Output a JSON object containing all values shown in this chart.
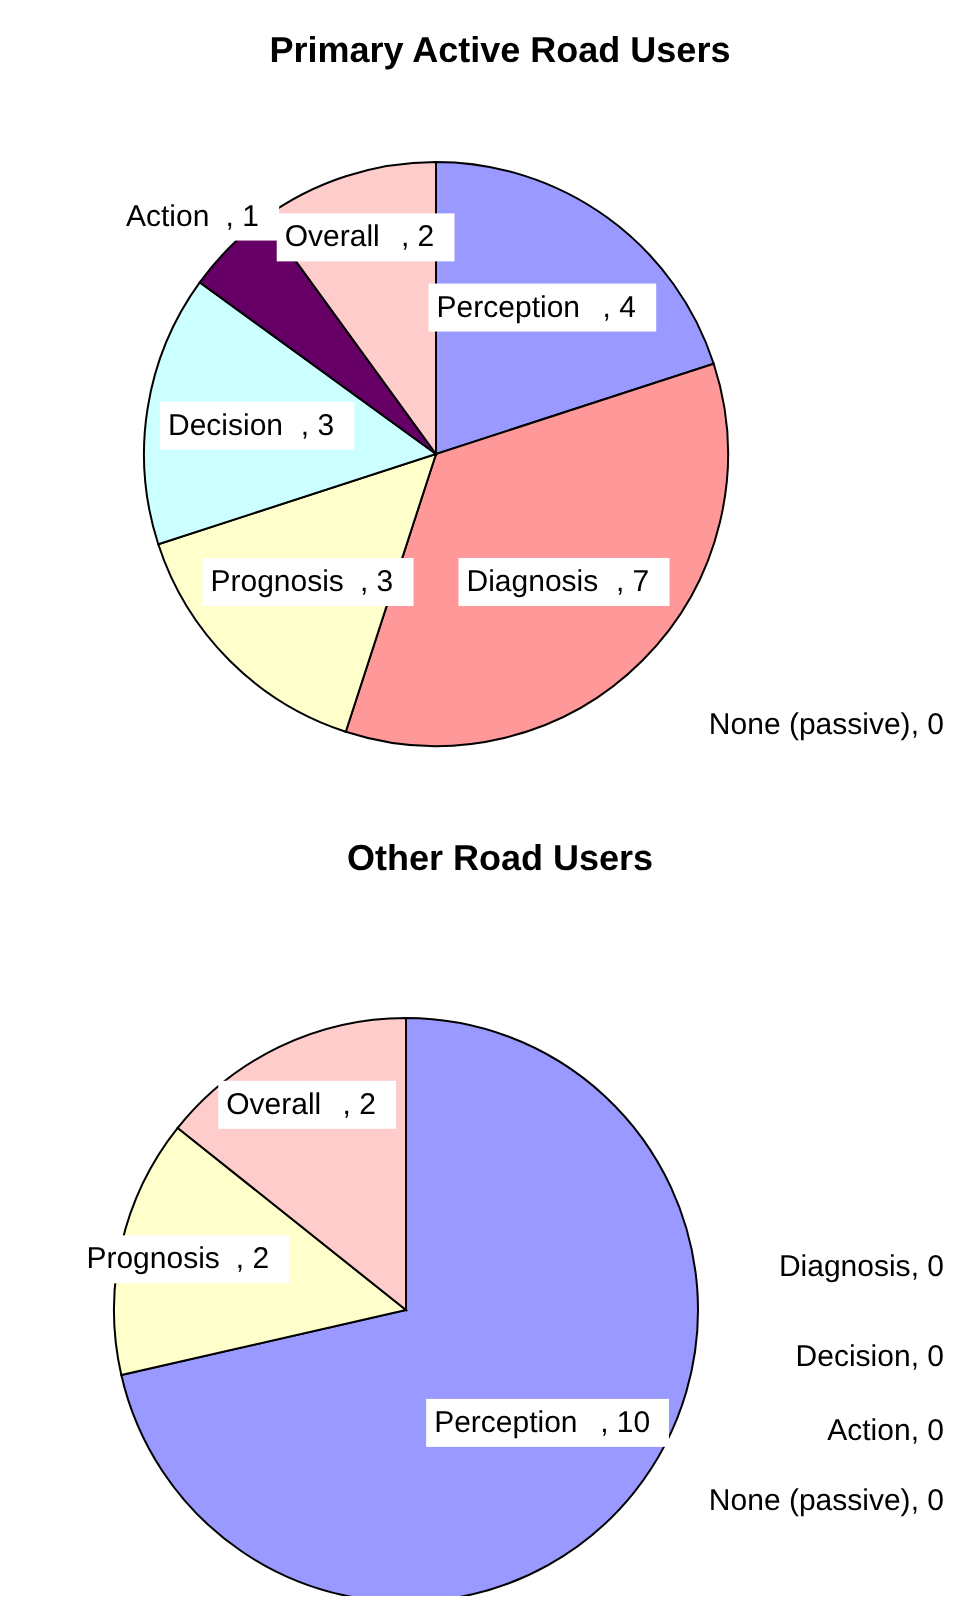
{
  "chart_data": [
    {
      "type": "pie",
      "title": "Primary Active Road Users",
      "categories": [
        "Perception",
        "Diagnosis",
        "None (passive)",
        "Prognosis",
        "Decision",
        "Action",
        "Overall"
      ],
      "values": [
        4,
        7,
        0,
        3,
        3,
        1,
        2
      ],
      "colors": [
        "#9999ff",
        "#ff9999",
        "#993366",
        "#ffffcc",
        "#ccffff",
        "#660066",
        "#ffcccc"
      ],
      "value_labels": [
        ", 4",
        ", 7",
        ", 0",
        ", 3",
        ", 3",
        ", 1",
        ", 2"
      ],
      "legend": false
    },
    {
      "type": "pie",
      "title": "Other Road Users",
      "categories": [
        "Perception",
        "Diagnosis",
        "Decision",
        "Action",
        "None (passive)",
        "Prognosis",
        "Overall"
      ],
      "values": [
        10,
        0,
        0,
        0,
        0,
        2,
        2
      ],
      "colors": [
        "#9999ff",
        "#ff9999",
        "#ccffff",
        "#660066",
        "#993366",
        "#ffffcc",
        "#ffcccc"
      ],
      "value_labels": [
        ", 10",
        ", 0",
        ", 0",
        ", 0",
        ", 0",
        ", 2",
        ", 2"
      ],
      "legend": false
    }
  ]
}
